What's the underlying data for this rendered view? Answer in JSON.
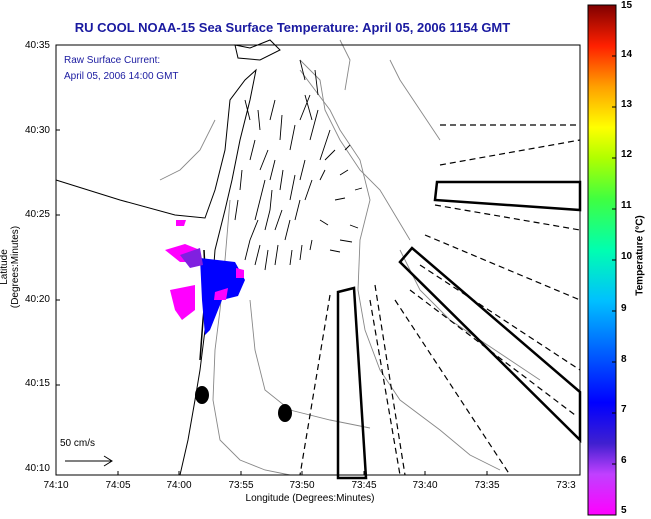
{
  "title": "RU COOL  NOAA-15  Sea Surface Temperature:  April 05, 2006 1154 GMT",
  "current": {
    "line1": "Raw Surface Current:",
    "line2": "April 05, 2006 14:00 GMT"
  },
  "axes": {
    "xlabel": "Longitude (Degrees:Minutes)",
    "ylabel": "Latitude (Degrees:Minutes)",
    "xticks": [
      "74:10",
      "74:05",
      "74:00",
      "73:55",
      "73:50",
      "73:45",
      "73:40",
      "73:35",
      "73:3"
    ],
    "yticks": [
      "40:35",
      "40:30",
      "40:25",
      "40:20",
      "40:15",
      "40:10"
    ]
  },
  "colorbar": {
    "label": "Temperature (°C)",
    "ticks": [
      "15",
      "14",
      "13",
      "12",
      "11",
      "10",
      "9",
      "8",
      "7",
      "6",
      "5"
    ],
    "min": 5,
    "max": 15
  },
  "scale_label": "50 cm/s",
  "colors": {
    "title": "#1a1aa0"
  }
}
